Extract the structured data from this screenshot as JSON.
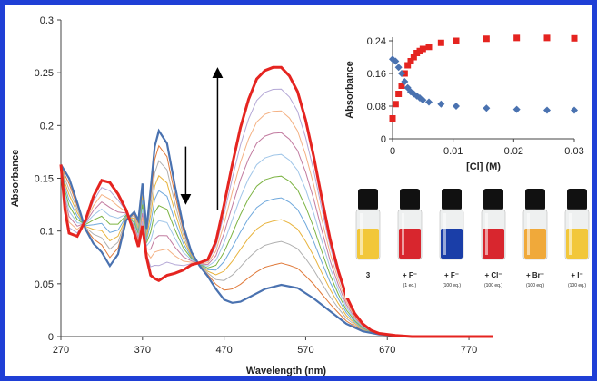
{
  "chart_data": [
    {
      "type": "line",
      "xlabel": "Wavelength (nm)",
      "ylabel": "Absorbance",
      "xlim": [
        270,
        800
      ],
      "ylim": [
        0,
        0.3
      ],
      "x_ticks": [
        "270",
        "370",
        "470",
        "570",
        "670",
        "770"
      ],
      "y_ticks": [
        "0",
        "0.05",
        "0.1",
        "0.15",
        "0.2",
        "0.25",
        "0.3"
      ],
      "grid": false,
      "series": [
        {
          "role": "initial",
          "color": "#4a72b0",
          "points": [
            [
              270,
              0.163
            ],
            [
              280,
              0.15
            ],
            [
              290,
              0.127
            ],
            [
              300,
              0.102
            ],
            [
              310,
              0.088
            ],
            [
              320,
              0.08
            ],
            [
              330,
              0.067
            ],
            [
              340,
              0.078
            ],
            [
              350,
              0.11
            ],
            [
              360,
              0.118
            ],
            [
              365,
              0.11
            ],
            [
              370,
              0.145
            ],
            [
              375,
              0.102
            ],
            [
              380,
              0.14
            ],
            [
              385,
              0.18
            ],
            [
              390,
              0.195
            ],
            [
              400,
              0.183
            ],
            [
              410,
              0.142
            ],
            [
              420,
              0.105
            ],
            [
              430,
              0.08
            ],
            [
              440,
              0.067
            ],
            [
              450,
              0.057
            ],
            [
              460,
              0.045
            ],
            [
              470,
              0.035
            ],
            [
              480,
              0.032
            ],
            [
              490,
              0.033
            ],
            [
              500,
              0.037
            ],
            [
              520,
              0.045
            ],
            [
              540,
              0.049
            ],
            [
              560,
              0.046
            ],
            [
              580,
              0.036
            ],
            [
              600,
              0.024
            ],
            [
              620,
              0.012
            ],
            [
              640,
              0.005
            ],
            [
              660,
              0.002
            ],
            [
              680,
              0.001
            ],
            [
              700,
              0.0
            ],
            [
              800,
              0.0
            ]
          ]
        },
        {
          "role": "final",
          "color": "#e52420",
          "points": [
            [
              270,
              0.163
            ],
            [
              275,
              0.12
            ],
            [
              280,
              0.098
            ],
            [
              290,
              0.095
            ],
            [
              300,
              0.11
            ],
            [
              310,
              0.133
            ],
            [
              320,
              0.148
            ],
            [
              330,
              0.146
            ],
            [
              340,
              0.135
            ],
            [
              350,
              0.12
            ],
            [
              360,
              0.098
            ],
            [
              365,
              0.085
            ],
            [
              370,
              0.105
            ],
            [
              375,
              0.075
            ],
            [
              380,
              0.058
            ],
            [
              385,
              0.055
            ],
            [
              390,
              0.053
            ],
            [
              400,
              0.058
            ],
            [
              410,
              0.06
            ],
            [
              420,
              0.063
            ],
            [
              430,
              0.068
            ],
            [
              440,
              0.07
            ],
            [
              450,
              0.073
            ],
            [
              460,
              0.09
            ],
            [
              470,
              0.125
            ],
            [
              480,
              0.163
            ],
            [
              490,
              0.198
            ],
            [
              500,
              0.225
            ],
            [
              510,
              0.244
            ],
            [
              520,
              0.252
            ],
            [
              530,
              0.255
            ],
            [
              540,
              0.255
            ],
            [
              550,
              0.247
            ],
            [
              560,
              0.232
            ],
            [
              570,
              0.205
            ],
            [
              580,
              0.17
            ],
            [
              590,
              0.13
            ],
            [
              600,
              0.092
            ],
            [
              610,
              0.062
            ],
            [
              620,
              0.038
            ],
            [
              630,
              0.022
            ],
            [
              640,
              0.012
            ],
            [
              650,
              0.006
            ],
            [
              660,
              0.003
            ],
            [
              680,
              0.001
            ],
            [
              700,
              0.0
            ],
            [
              800,
              0.0
            ]
          ]
        }
      ],
      "intermediate_colors": [
        "#e07a3a",
        "#b0b0b0",
        "#e8b33c",
        "#6fa8dc",
        "#7cb342",
        "#9fc5e8",
        "#c27ba0",
        "#f4b183",
        "#b4a7d6"
      ],
      "arrows": [
        {
          "direction": "down",
          "x": 423,
          "y_from": 0.18,
          "y_to": 0.13
        },
        {
          "direction": "up",
          "x": 462,
          "y_from": 0.12,
          "y_to": 0.25
        }
      ]
    },
    {
      "type": "scatter",
      "xlabel": "[Cl] (M)",
      "ylabel": "Absorbance",
      "xlim": [
        0,
        0.03
      ],
      "ylim": [
        0,
        0.24
      ],
      "x_ticks": [
        "0",
        "0.01",
        "0.02",
        "0.03"
      ],
      "y_ticks": [
        "0",
        "0.08",
        "0.16",
        "0.24"
      ],
      "grid": false,
      "series": [
        {
          "marker": "square",
          "color": "#e52420",
          "points": [
            [
              0.0,
              0.05
            ],
            [
              0.0005,
              0.085
            ],
            [
              0.001,
              0.11
            ],
            [
              0.0015,
              0.13
            ],
            [
              0.002,
              0.16
            ],
            [
              0.0025,
              0.18
            ],
            [
              0.003,
              0.19
            ],
            [
              0.0035,
              0.2
            ],
            [
              0.004,
              0.21
            ],
            [
              0.0045,
              0.215
            ],
            [
              0.005,
              0.22
            ],
            [
              0.006,
              0.225
            ],
            [
              0.008,
              0.235
            ],
            [
              0.0105,
              0.24
            ],
            [
              0.0155,
              0.245
            ],
            [
              0.0205,
              0.247
            ],
            [
              0.0255,
              0.247
            ],
            [
              0.03,
              0.246
            ]
          ]
        },
        {
          "marker": "diamond",
          "color": "#4a72b0",
          "points": [
            [
              0.0,
              0.195
            ],
            [
              0.0005,
              0.19
            ],
            [
              0.001,
              0.175
            ],
            [
              0.0015,
              0.16
            ],
            [
              0.002,
              0.14
            ],
            [
              0.0025,
              0.125
            ],
            [
              0.003,
              0.115
            ],
            [
              0.0035,
              0.11
            ],
            [
              0.004,
              0.105
            ],
            [
              0.0045,
              0.1
            ],
            [
              0.005,
              0.095
            ],
            [
              0.006,
              0.09
            ],
            [
              0.008,
              0.085
            ],
            [
              0.0105,
              0.08
            ],
            [
              0.0155,
              0.075
            ],
            [
              0.0205,
              0.072
            ],
            [
              0.0255,
              0.07
            ],
            [
              0.03,
              0.07
            ]
          ]
        }
      ]
    }
  ],
  "vials": [
    {
      "label": "3",
      "sub": "",
      "color": "#f2c73a"
    },
    {
      "label": "+ F⁻",
      "sub": "(1 eq.)",
      "color": "#d8262e"
    },
    {
      "label": "+ F⁻",
      "sub": "(100 eq.)",
      "color": "#1a3ea8"
    },
    {
      "label": "+ Cl⁻",
      "sub": "(100 eq.)",
      "color": "#d8262e"
    },
    {
      "label": "+ Br⁻",
      "sub": "(100 eq.)",
      "color": "#f0a93a"
    },
    {
      "label": "+ I⁻",
      "sub": "(100 eq.)",
      "color": "#f2c73a"
    }
  ]
}
